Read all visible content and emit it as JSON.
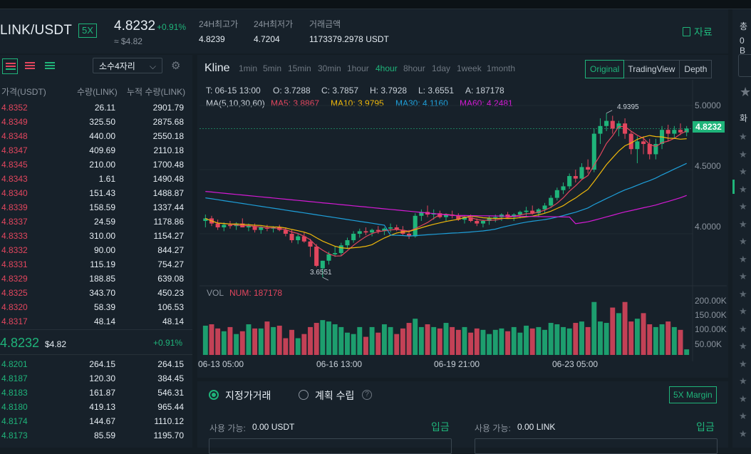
{
  "header": {
    "pair": "LINK/USDT",
    "leverage": "5X",
    "last_price": "4.8232",
    "change": "+0.91%",
    "approx": "≈ $4.82",
    "stats": [
      {
        "label": "24H최고가",
        "value": "4.8239"
      },
      {
        "label": "24H최저가",
        "value": "4.7204"
      },
      {
        "label": "거래금액",
        "value": "1173379.2978 USDT"
      }
    ],
    "doc_label": "자료"
  },
  "orderbook": {
    "precision": "소수4자리",
    "headers": {
      "price": "가격(USDT)",
      "qty": "수량(LINK)",
      "total": "누적 수량(LINK)"
    },
    "asks": [
      [
        "4.8352",
        "26.11",
        "2901.79"
      ],
      [
        "4.8349",
        "325.50",
        "2875.68"
      ],
      [
        "4.8348",
        "440.00",
        "2550.18"
      ],
      [
        "4.8347",
        "409.69",
        "2110.18"
      ],
      [
        "4.8345",
        "210.00",
        "1700.48"
      ],
      [
        "4.8343",
        "1.61",
        "1490.48"
      ],
      [
        "4.8340",
        "151.43",
        "1488.87"
      ],
      [
        "4.8339",
        "158.59",
        "1337.44"
      ],
      [
        "4.8337",
        "24.59",
        "1178.86"
      ],
      [
        "4.8333",
        "310.00",
        "1154.27"
      ],
      [
        "4.8332",
        "90.00",
        "844.27"
      ],
      [
        "4.8331",
        "115.19",
        "754.27"
      ],
      [
        "4.8329",
        "188.85",
        "639.08"
      ],
      [
        "4.8325",
        "343.70",
        "450.23"
      ],
      [
        "4.8320",
        "58.39",
        "106.53"
      ],
      [
        "4.8317",
        "48.14",
        "48.14"
      ]
    ],
    "mid_price": "4.8232",
    "mid_usd": "$4.82",
    "mid_change": "+0.91%",
    "bids": [
      [
        "4.8201",
        "264.15",
        "264.15"
      ],
      [
        "4.8187",
        "120.30",
        "384.45"
      ],
      [
        "4.8183",
        "161.87",
        "546.31"
      ],
      [
        "4.8180",
        "419.13",
        "965.44"
      ],
      [
        "4.8174",
        "144.67",
        "1110.12"
      ],
      [
        "4.8173",
        "85.59",
        "1195.70"
      ]
    ]
  },
  "chart": {
    "title": "Kline",
    "timeframes": [
      "1min",
      "5min",
      "15min",
      "30min",
      "1hour",
      "4hour",
      "8hour",
      "1day",
      "1week",
      "1month"
    ],
    "active_timeframe": "4hour",
    "views": [
      "Original",
      "TradingView",
      "Depth"
    ],
    "active_view": "Original",
    "ohlc": {
      "t": "T: 06-15 13:00",
      "o": "O: 3.7288",
      "c": "C: 3.7857",
      "h": "H: 3.7928",
      "l": "L: 3.6551",
      "a": "A: 187178"
    },
    "ma_label": "MA(5,10,30,60)",
    "ma": [
      {
        "label": "MA5: 3.8867",
        "color": "#e2465e"
      },
      {
        "label": "MA10: 3.9795",
        "color": "#f0b90b"
      },
      {
        "label": "MA30: 4.1160",
        "color": "#1e9fd9"
      },
      {
        "label": "MA60: 4.2481",
        "color": "#d41ad4"
      }
    ],
    "y_labels": [
      "5.0000",
      "4.5000",
      "4.0000"
    ],
    "price_tag": "4.8232",
    "high_mark": "4.9395",
    "low_mark": "3.6551",
    "vol_label": "VOL",
    "vol_num": "NUM: 187178",
    "vol_y_labels": [
      "200.00K",
      "150.00K",
      "100.00K",
      "50.00K"
    ],
    "x_labels": [
      "06-13 05:00",
      "06-16 13:00",
      "06-19 21:00",
      "06-23 05:00"
    ]
  },
  "chart_data": {
    "type": "candlestick",
    "ylim": [
      3.6,
      5.1
    ],
    "candles": [
      [
        4.1,
        4.15,
        4.05,
        4.12
      ],
      [
        4.12,
        4.14,
        4.06,
        4.08
      ],
      [
        4.08,
        4.11,
        4.03,
        4.05
      ],
      [
        4.05,
        4.09,
        4.02,
        4.07
      ],
      [
        4.07,
        4.1,
        4.04,
        4.06
      ],
      [
        4.06,
        4.09,
        4.03,
        4.08
      ],
      [
        4.08,
        4.12,
        4.05,
        4.05
      ],
      [
        4.05,
        4.08,
        4.02,
        4.06
      ],
      [
        4.06,
        4.08,
        4.01,
        4.03
      ],
      [
        4.03,
        4.06,
        4.0,
        4.05
      ],
      [
        4.05,
        4.07,
        4.02,
        4.04
      ],
      [
        4.04,
        4.06,
        4.01,
        4.05
      ],
      [
        4.05,
        4.07,
        4.02,
        4.03
      ],
      [
        4.03,
        4.05,
        3.98,
        4.0
      ],
      [
        4.0,
        4.03,
        3.93,
        3.95
      ],
      [
        3.95,
        4.0,
        3.92,
        3.98
      ],
      [
        3.98,
        4.01,
        3.93,
        3.94
      ],
      [
        3.94,
        3.96,
        3.82,
        3.9
      ],
      [
        3.9,
        3.92,
        3.74,
        3.75
      ],
      [
        3.73,
        3.79,
        3.66,
        3.79
      ],
      [
        3.79,
        3.86,
        3.76,
        3.84
      ],
      [
        3.84,
        3.9,
        3.82,
        3.85
      ],
      [
        3.85,
        3.93,
        3.83,
        3.91
      ],
      [
        3.91,
        3.97,
        3.88,
        3.95
      ],
      [
        3.95,
        4.02,
        3.93,
        4.0
      ],
      [
        4.0,
        4.04,
        3.97,
        4.02
      ],
      [
        4.02,
        4.05,
        3.99,
        4.01
      ],
      [
        4.01,
        4.04,
        3.98,
        4.03
      ],
      [
        4.03,
        4.06,
        4.0,
        4.02
      ],
      [
        4.02,
        4.05,
        3.99,
        4.04
      ],
      [
        4.04,
        4.08,
        4.01,
        4.05
      ],
      [
        4.05,
        4.07,
        4.02,
        4.03
      ],
      [
        4.03,
        4.06,
        3.99,
        4.0
      ],
      [
        4.0,
        4.03,
        3.96,
        3.98
      ],
      [
        3.98,
        4.16,
        3.97,
        4.14
      ],
      [
        4.14,
        4.19,
        4.1,
        4.17
      ],
      [
        4.17,
        4.22,
        4.13,
        4.15
      ],
      [
        4.15,
        4.19,
        4.11,
        4.16
      ],
      [
        4.16,
        4.18,
        4.12,
        4.13
      ],
      [
        4.13,
        4.16,
        4.1,
        4.15
      ],
      [
        4.15,
        4.18,
        4.12,
        4.14
      ],
      [
        4.14,
        4.16,
        4.1,
        4.11
      ],
      [
        4.11,
        4.14,
        4.08,
        4.13
      ],
      [
        4.13,
        4.15,
        4.09,
        4.1
      ],
      [
        4.1,
        4.12,
        4.06,
        4.08
      ],
      [
        4.08,
        4.11,
        4.05,
        4.1
      ],
      [
        4.1,
        4.14,
        4.07,
        4.12
      ],
      [
        4.12,
        4.15,
        4.09,
        4.13
      ],
      [
        4.13,
        4.16,
        4.1,
        4.15
      ],
      [
        4.15,
        4.17,
        4.12,
        4.13
      ],
      [
        4.13,
        4.16,
        4.1,
        4.15
      ],
      [
        4.15,
        4.18,
        4.12,
        4.17
      ],
      [
        4.17,
        4.21,
        4.14,
        4.18
      ],
      [
        4.18,
        4.22,
        4.15,
        4.16
      ],
      [
        4.16,
        4.2,
        4.13,
        4.19
      ],
      [
        4.19,
        4.24,
        4.16,
        4.22
      ],
      [
        4.22,
        4.3,
        4.2,
        4.28
      ],
      [
        4.28,
        4.36,
        4.26,
        4.34
      ],
      [
        4.34,
        4.4,
        4.31,
        4.37
      ],
      [
        4.37,
        4.47,
        4.35,
        4.45
      ],
      [
        4.45,
        4.5,
        4.4,
        4.43
      ],
      [
        4.43,
        4.55,
        4.42,
        4.52
      ],
      [
        4.52,
        4.58,
        4.47,
        4.5
      ],
      [
        4.5,
        4.82,
        4.48,
        4.78
      ],
      [
        4.78,
        4.9,
        4.7,
        4.84
      ],
      [
        4.84,
        4.94,
        4.8,
        4.88
      ],
      [
        4.88,
        4.92,
        4.78,
        4.82
      ],
      [
        4.82,
        4.88,
        4.76,
        4.86
      ],
      [
        4.86,
        4.9,
        4.74,
        4.78
      ],
      [
        4.78,
        4.8,
        4.62,
        4.66
      ],
      [
        4.66,
        4.76,
        4.55,
        4.72
      ],
      [
        4.72,
        4.76,
        4.62,
        4.7
      ],
      [
        4.7,
        4.74,
        4.58,
        4.62
      ],
      [
        4.62,
        4.74,
        4.58,
        4.7
      ],
      [
        4.7,
        4.84,
        4.66,
        4.81
      ],
      [
        4.81,
        4.85,
        4.72,
        4.78
      ],
      [
        4.78,
        4.84,
        4.74,
        4.81
      ],
      [
        4.81,
        4.86,
        4.77,
        4.79
      ],
      [
        4.79,
        4.84,
        4.76,
        4.82
      ]
    ],
    "volume": [
      105,
      110,
      95,
      85,
      100,
      75,
      85,
      110,
      95,
      95,
      120,
      100,
      105,
      60,
      90,
      60,
      75,
      100,
      115,
      125,
      120,
      110,
      100,
      80,
      75,
      100,
      65,
      100,
      80,
      110,
      100,
      75,
      95,
      115,
      130,
      100,
      110,
      100,
      95,
      115,
      100,
      90,
      100,
      80,
      95,
      90,
      75,
      90,
      95,
      85,
      100,
      80,
      105,
      95,
      100,
      90,
      115,
      110,
      100,
      95,
      115,
      120,
      100,
      190,
      120,
      115,
      170,
      150,
      190,
      120,
      130,
      150,
      110,
      100,
      110,
      120,
      100,
      90,
      20
    ]
  },
  "order": {
    "tab_limit": "지정가거래",
    "tab_plan": "계획 수립",
    "margin_btn": "5X Margin",
    "avail_label": "사용 가능:",
    "buy_avail": "0.00 USDT",
    "sell_avail": "0.00 LINK",
    "deposit": "입금"
  },
  "right": {
    "t1": "총",
    "t2": "0 B",
    "t3": "화"
  }
}
